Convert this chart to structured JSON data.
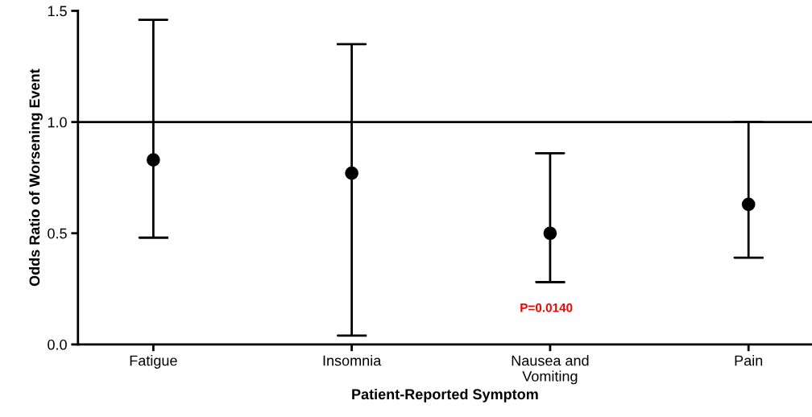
{
  "chart_data": {
    "type": "scatter",
    "xlabel": "Patient-Reported Symptom",
    "ylabel": "Odds Ratio of Worsening Event",
    "categories": [
      "Fatigue",
      "Insomnia",
      "Nausea and\nVomiting",
      "Pain"
    ],
    "values": [
      0.83,
      0.77,
      0.5,
      0.63
    ],
    "errors": [
      [
        0.48,
        1.46
      ],
      [
        0.04,
        1.35
      ],
      [
        0.28,
        0.86
      ],
      [
        0.39,
        1.0
      ]
    ],
    "color": "#000000",
    "marker": "circle",
    "ylim": [
      0,
      1.5
    ],
    "yticks": [
      {
        "value": 0,
        "label": "0.0"
      },
      {
        "value": 0.5,
        "label": "0.5"
      },
      {
        "value": 1.0,
        "label": "1.0"
      },
      {
        "value": 1.5,
        "label": "1.5"
      }
    ],
    "ref_lines": [
      {
        "axis": "y",
        "value": 1.0,
        "color": "#000000"
      }
    ],
    "annotations": [
      "P=0.0140"
    ],
    "grid": false,
    "legend": false
  }
}
